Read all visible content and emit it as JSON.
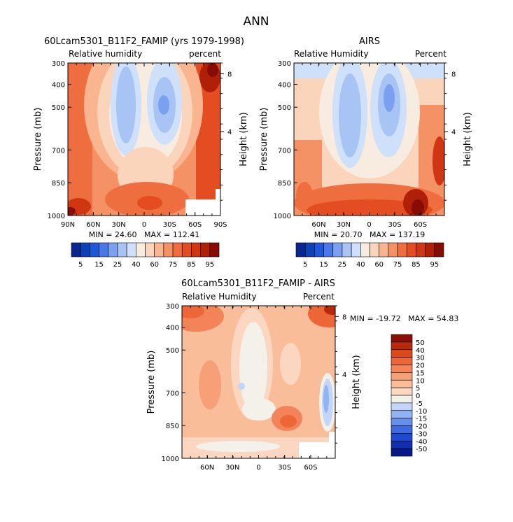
{
  "figure_title": "ANN",
  "colors": {
    "levels_abs": [
      "#08288f",
      "#1040b8",
      "#2058d8",
      "#4a78e8",
      "#7ba0f0",
      "#a8c4f5",
      "#cfe0fa",
      "#f7ecdf",
      "#fbd4bc",
      "#f9b590",
      "#f59265",
      "#ef6e40",
      "#e44d22",
      "#d03612",
      "#b02008",
      "#870c04"
    ],
    "levels_diff": [
      "#08188a",
      "#1030b0",
      "#1e4ad0",
      "#3e6ae2",
      "#6690ec",
      "#93b4f4",
      "#c3d6fa",
      "#f4f1ea",
      "#fbd7c2",
      "#f9bd9a",
      "#f7a078",
      "#f3845a",
      "#ec6637",
      "#dc4a1c",
      "#b82a0c",
      "#8a0f04"
    ]
  },
  "chart_data": [
    {
      "type": "heatmap",
      "title": "60Lcam5301_B11F2_FAMIP (yrs 1979-1998)",
      "left_label": "Relative humidity",
      "right_label": "percent",
      "ylabel": "Pressure (mb)",
      "ylabel_right": "Height (km)",
      "x_ticks": [
        "90N",
        "60N",
        "30N",
        "0",
        "30S",
        "60S",
        "90S"
      ],
      "y_ticks": [
        "300",
        "400",
        "500",
        "700",
        "850",
        "1000"
      ],
      "y2_ticks": [
        "8",
        "4"
      ],
      "ylim": [
        1000,
        300
      ],
      "stats": {
        "min_label": "MIN =",
        "min": "24.60",
        "max_label": "MAX =",
        "max": "112.41"
      },
      "colorbar_labels": [
        "5",
        "15",
        "25",
        "40",
        "60",
        "75",
        "85",
        "95"
      ]
    },
    {
      "type": "heatmap",
      "title": "AIRS",
      "left_label": "Relative Humidity",
      "right_label": "Percent",
      "ylabel": "Pressure (mb)",
      "ylabel_right": "Height (km)",
      "x_ticks": [
        "60N",
        "30N",
        "0",
        "30S",
        "60S"
      ],
      "y_ticks": [
        "300",
        "400",
        "500",
        "700",
        "850",
        "1000"
      ],
      "y2_ticks": [
        "8",
        "4"
      ],
      "ylim": [
        1000,
        300
      ],
      "stats": {
        "min_label": "MIN =",
        "min": "20.70",
        "max_label": "MAX =",
        "max": "137.19"
      },
      "colorbar_labels": [
        "5",
        "15",
        "25",
        "40",
        "60",
        "75",
        "85",
        "95"
      ]
    },
    {
      "type": "heatmap",
      "title": "60Lcam5301_B11F2_FAMIP - AIRS",
      "left_label": "Relative Humidity",
      "right_label": "Percent",
      "ylabel": "Pressure (mb)",
      "ylabel_right": "Height (km)",
      "x_ticks": [
        "60N",
        "30N",
        "0",
        "30S",
        "60S"
      ],
      "y_ticks": [
        "300",
        "400",
        "500",
        "700",
        "850",
        "1000"
      ],
      "y2_ticks": [
        "8",
        "4"
      ],
      "ylim": [
        1000,
        300
      ],
      "stats": {
        "min_label": "MIN =",
        "min": "-19.72",
        "max_label": "MAX =",
        "max": "54.83"
      },
      "colorbar_labels": [
        "50",
        "40",
        "30",
        "20",
        "15",
        "10",
        "5",
        "0",
        "-5",
        "-10",
        "-15",
        "-20",
        "-30",
        "-40",
        "-50"
      ]
    }
  ]
}
